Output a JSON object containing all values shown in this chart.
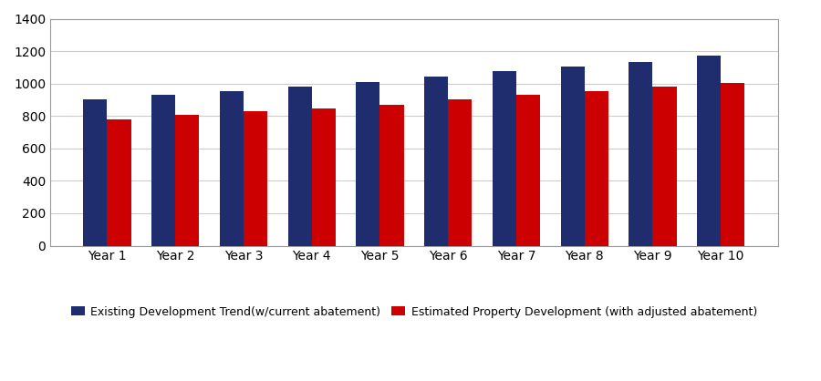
{
  "categories": [
    "Year 1",
    "Year 2",
    "Year 3",
    "Year 4",
    "Year 5",
    "Year 6",
    "Year 7",
    "Year 8",
    "Year 9",
    "Year 10"
  ],
  "blue_values": [
    905,
    930,
    955,
    980,
    1010,
    1045,
    1075,
    1105,
    1135,
    1175
  ],
  "red_values": [
    780,
    805,
    830,
    845,
    870,
    900,
    930,
    955,
    980,
    1005
  ],
  "blue_color": "#1F2D6E",
  "red_color": "#CC0000",
  "legend_blue": "Existing Development Trend(w/current abatement)",
  "legend_red": "Estimated Property Development (with adjusted abatement)",
  "ylim": [
    0,
    1400
  ],
  "yticks": [
    0,
    200,
    400,
    600,
    800,
    1000,
    1200,
    1400
  ],
  "bar_width": 0.35,
  "figure_width": 9.0,
  "figure_height": 4.18,
  "background_color": "#FFFFFF",
  "grid_color": "#CCCCCC",
  "border_color": "#999999"
}
